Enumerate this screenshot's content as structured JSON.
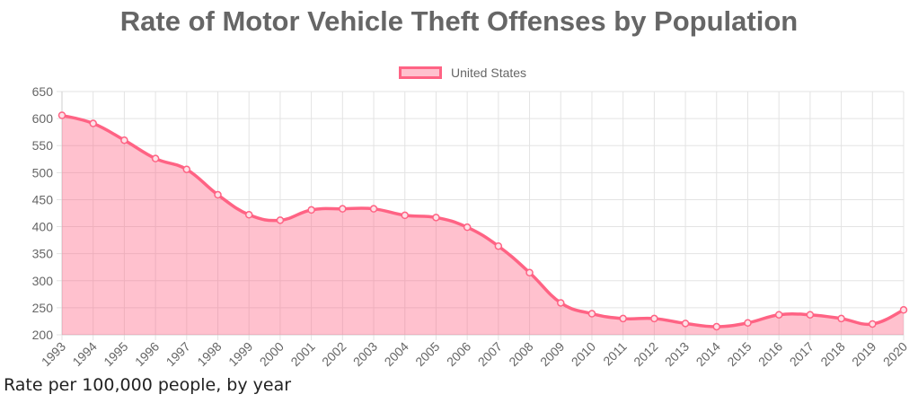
{
  "chart_data": {
    "type": "area",
    "title": "Rate of Motor Vehicle Theft Offenses by Population",
    "caption": "Rate per 100,000 people, by year",
    "series": [
      {
        "name": "United States",
        "color": "#ff6384",
        "fill": "rgba(255,99,132,0.4)",
        "values": [
          606,
          591,
          560,
          526,
          506,
          459,
          422,
          412,
          431,
          433,
          433,
          421,
          417,
          399,
          364,
          315,
          259,
          239,
          230,
          230,
          221,
          215,
          222,
          237,
          237,
          230,
          220,
          246
        ]
      }
    ],
    "x": [
      "1993",
      "1994",
      "1995",
      "1996",
      "1997",
      "1998",
      "1999",
      "2000",
      "2001",
      "2002",
      "2003",
      "2004",
      "2005",
      "2006",
      "2007",
      "2008",
      "2009",
      "2010",
      "2011",
      "2012",
      "2013",
      "2014",
      "2015",
      "2016",
      "2017",
      "2018",
      "2019",
      "2020"
    ],
    "ylim": [
      200,
      650
    ],
    "yticks": [
      200,
      250,
      300,
      350,
      400,
      450,
      500,
      550,
      600,
      650
    ],
    "grid": true,
    "legend_position": "top-center",
    "line_style": "smooth"
  }
}
